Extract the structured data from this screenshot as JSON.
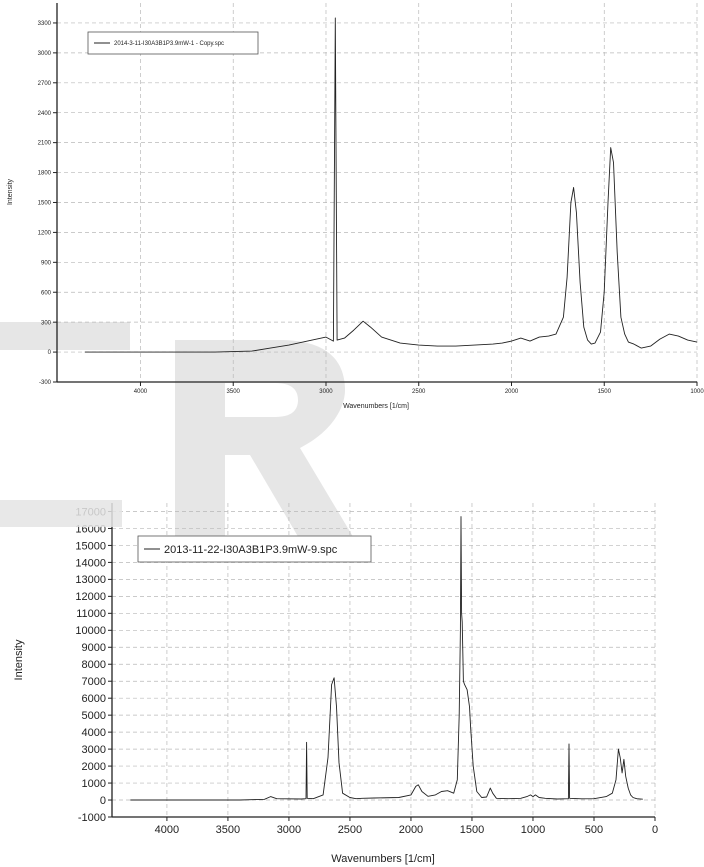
{
  "chart_data": [
    {
      "type": "line",
      "legend": {
        "label": "2014-3-11-I30A3B1P3.9mW-1 - Copy.spc",
        "placement": "top-left"
      },
      "xlabel": "Wavenumbers [1/cm]",
      "ylabel": "Intensity",
      "xlim": [
        4450,
        1000
      ],
      "ylim": [
        -300,
        3500
      ],
      "x_ticks": [
        4000,
        3500,
        3000,
        2500,
        2000,
        1500,
        1000
      ],
      "y_ticks": [
        -300,
        0,
        300,
        600,
        900,
        1200,
        1500,
        1800,
        2100,
        2400,
        2700,
        3000,
        3300
      ],
      "grid": true,
      "series": [
        {
          "points": [
            [
              4300,
              0
            ],
            [
              3600,
              0
            ],
            [
              3400,
              10
            ],
            [
              3300,
              40
            ],
            [
              3200,
              70
            ],
            [
              3100,
              110
            ],
            [
              3050,
              130
            ],
            [
              3000,
              150
            ],
            [
              2960,
              110
            ],
            [
              2950,
              3350
            ],
            [
              2940,
              120
            ],
            [
              2900,
              140
            ],
            [
              2850,
              220
            ],
            [
              2800,
              310
            ],
            [
              2760,
              250
            ],
            [
              2700,
              150
            ],
            [
              2600,
              90
            ],
            [
              2500,
              70
            ],
            [
              2400,
              60
            ],
            [
              2300,
              60
            ],
            [
              2200,
              70
            ],
            [
              2100,
              80
            ],
            [
              2050,
              90
            ],
            [
              2000,
              110
            ],
            [
              1950,
              140
            ],
            [
              1900,
              110
            ],
            [
              1850,
              150
            ],
            [
              1800,
              160
            ],
            [
              1760,
              180
            ],
            [
              1720,
              350
            ],
            [
              1700,
              750
            ],
            [
              1680,
              1500
            ],
            [
              1665,
              1650
            ],
            [
              1650,
              1400
            ],
            [
              1630,
              700
            ],
            [
              1610,
              250
            ],
            [
              1590,
              120
            ],
            [
              1570,
              80
            ],
            [
              1550,
              90
            ],
            [
              1520,
              200
            ],
            [
              1500,
              600
            ],
            [
              1480,
              1500
            ],
            [
              1465,
              2050
            ],
            [
              1450,
              1900
            ],
            [
              1430,
              1000
            ],
            [
              1410,
              350
            ],
            [
              1390,
              180
            ],
            [
              1370,
              100
            ],
            [
              1340,
              80
            ],
            [
              1300,
              40
            ],
            [
              1250,
              60
            ],
            [
              1200,
              130
            ],
            [
              1150,
              180
            ],
            [
              1100,
              160
            ],
            [
              1050,
              120
            ],
            [
              1000,
              100
            ]
          ]
        }
      ]
    },
    {
      "type": "line",
      "legend": {
        "label": "2013-11-22-I30A3B1P3.9mW-9.spc",
        "placement": "top-left"
      },
      "xlabel": "Wavenumbers [1/cm]",
      "ylabel": "Intensity",
      "xlim": [
        4450,
        0
      ],
      "ylim": [
        -1000,
        17500
      ],
      "x_ticks": [
        4000,
        3500,
        3000,
        2500,
        2000,
        1500,
        1000,
        500,
        0
      ],
      "y_ticks": [
        -1000,
        0,
        1000,
        2000,
        3000,
        4000,
        5000,
        6000,
        7000,
        8000,
        9000,
        10000,
        11000,
        12000,
        13000,
        14000,
        15000,
        16000,
        17000
      ],
      "grid": true,
      "series": [
        {
          "points": [
            [
              4300,
              0
            ],
            [
              3400,
              0
            ],
            [
              3200,
              40
            ],
            [
              3150,
              200
            ],
            [
              3100,
              80
            ],
            [
              2900,
              60
            ],
            [
              2860,
              80
            ],
            [
              2855,
              3400
            ],
            [
              2850,
              100
            ],
            [
              2800,
              80
            ],
            [
              2720,
              300
            ],
            [
              2680,
              2500
            ],
            [
              2650,
              6800
            ],
            [
              2630,
              7200
            ],
            [
              2610,
              5500
            ],
            [
              2590,
              2200
            ],
            [
              2560,
              400
            ],
            [
              2500,
              150
            ],
            [
              2450,
              80
            ],
            [
              2400,
              100
            ],
            [
              2300,
              120
            ],
            [
              2100,
              150
            ],
            [
              2000,
              300
            ],
            [
              1960,
              800
            ],
            [
              1940,
              900
            ],
            [
              1910,
              500
            ],
            [
              1860,
              220
            ],
            [
              1800,
              300
            ],
            [
              1750,
              500
            ],
            [
              1700,
              550
            ],
            [
              1650,
              400
            ],
            [
              1620,
              1200
            ],
            [
              1605,
              5000
            ],
            [
              1595,
              10000
            ],
            [
              1590,
              16700
            ],
            [
              1585,
              11000
            ],
            [
              1580,
              10500
            ],
            [
              1570,
              7000
            ],
            [
              1560,
              6800
            ],
            [
              1540,
              6500
            ],
            [
              1520,
              5500
            ],
            [
              1510,
              4200
            ],
            [
              1490,
              2000
            ],
            [
              1460,
              500
            ],
            [
              1420,
              150
            ],
            [
              1380,
              180
            ],
            [
              1350,
              700
            ],
            [
              1330,
              400
            ],
            [
              1300,
              100
            ],
            [
              1200,
              80
            ],
            [
              1100,
              100
            ],
            [
              1050,
              200
            ],
            [
              1020,
              300
            ],
            [
              1000,
              200
            ],
            [
              980,
              300
            ],
            [
              950,
              150
            ],
            [
              900,
              100
            ],
            [
              800,
              60
            ],
            [
              710,
              80
            ],
            [
              705,
              3300
            ],
            [
              700,
              100
            ],
            [
              600,
              70
            ],
            [
              500,
              80
            ],
            [
              400,
              200
            ],
            [
              350,
              400
            ],
            [
              320,
              1200
            ],
            [
              300,
              3000
            ],
            [
              285,
              2500
            ],
            [
              270,
              1600
            ],
            [
              255,
              2400
            ],
            [
              240,
              1400
            ],
            [
              220,
              700
            ],
            [
              200,
              300
            ],
            [
              180,
              150
            ],
            [
              150,
              80
            ],
            [
              100,
              50
            ]
          ]
        }
      ]
    }
  ]
}
